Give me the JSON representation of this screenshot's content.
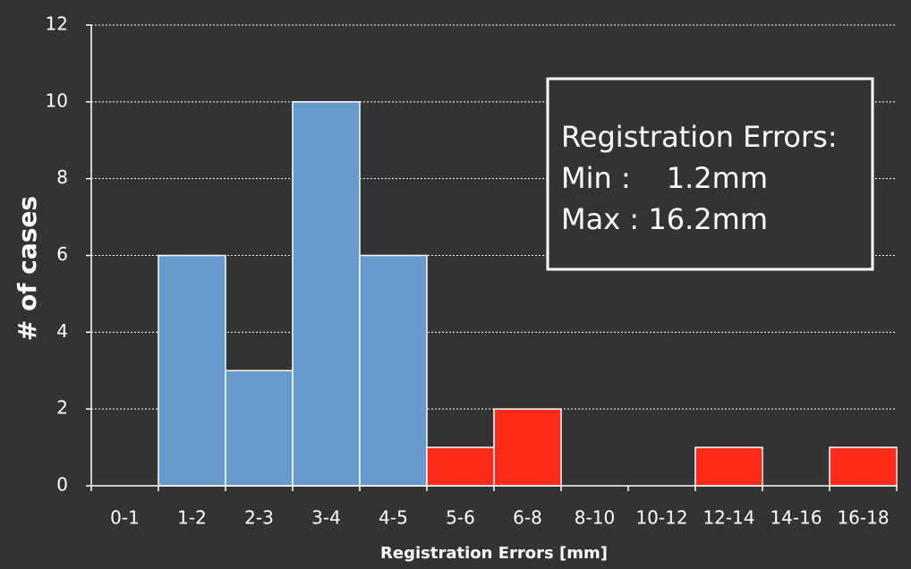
{
  "chart_data": {
    "type": "bar",
    "ylabel": "# of cases",
    "xlabel": "Registration Errors [mm]",
    "categories": [
      "0-1",
      "1-2",
      "2-3",
      "3-4",
      "4-5",
      "5-6",
      "6-8",
      "8-10",
      "10-12",
      "12-14",
      "14-16",
      "16-18"
    ],
    "values": [
      0,
      6,
      3,
      10,
      6,
      1,
      2,
      0,
      0,
      1,
      0,
      1
    ],
    "colors": [
      "#6699cc",
      "#6699cc",
      "#6699cc",
      "#6699cc",
      "#6699cc",
      "#ff2a1a",
      "#ff2a1a",
      "#ff2a1a",
      "#ff2a1a",
      "#ff2a1a",
      "#ff2a1a",
      "#ff2a1a"
    ],
    "ylim": [
      0,
      12
    ],
    "yticks": [
      0,
      2,
      4,
      6,
      8,
      10,
      12
    ],
    "grid": true,
    "annotation": {
      "title": "Registration Errors:",
      "rows": [
        [
          "Min :",
          "1.2mm"
        ],
        [
          "Max :",
          "16.2mm"
        ]
      ]
    }
  }
}
